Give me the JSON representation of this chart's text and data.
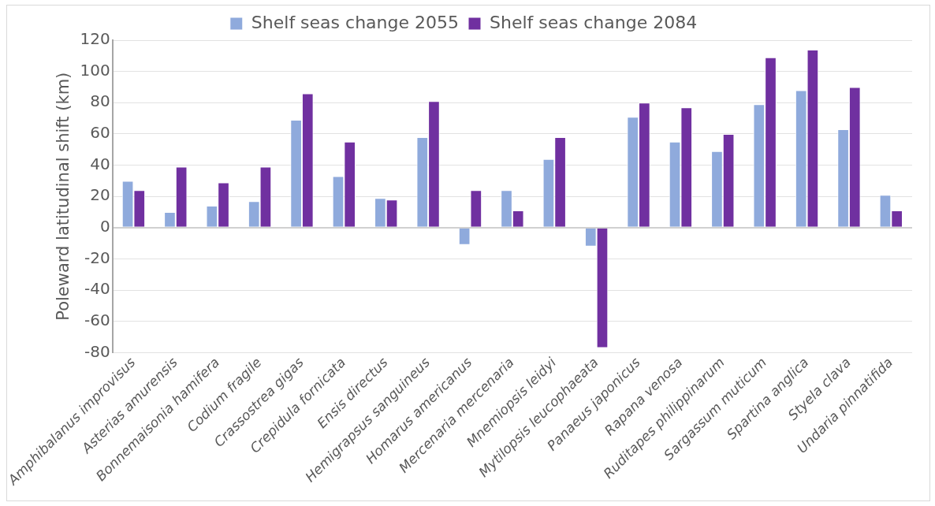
{
  "chart_data": {
    "type": "bar",
    "ylabel": "Poleward latitudinal shift (km)",
    "categories": [
      "Amphibalanus improvisus",
      "Asterias amurensis",
      "Bonnemaisonia hamifera",
      "Codium fragile",
      "Crassostrea gigas",
      "Crepidula fornicata",
      "Ensis directus",
      "Hemigrapsus sanguineus",
      "Homarus americanus",
      "Mercenaria mercenaria",
      "Mnemiopsis leidyi",
      "Mytilopsis leucophaeata",
      "Panaeus japonicus",
      "Rapana venosa",
      "Ruditapes philippinarum",
      "Sargassum muticum",
      "Spartina anglica",
      "Styela clava",
      "Undaria pinnatifida"
    ],
    "series": [
      {
        "name": "Shelf seas change 2055",
        "color": "#8faadc",
        "values": [
          30,
          10,
          14,
          17,
          69,
          33,
          19,
          58,
          -11,
          24,
          44,
          -12,
          71,
          55,
          49,
          79,
          88,
          63,
          21
        ]
      },
      {
        "name": "Shelf seas change 2084",
        "color": "#7030a0",
        "values": [
          24,
          39,
          29,
          39,
          86,
          55,
          18,
          81,
          24,
          11,
          58,
          -77,
          80,
          77,
          60,
          109,
          114,
          90,
          11
        ]
      }
    ],
    "ylim": [
      -80,
      120
    ],
    "yticks": [
      -80,
      -60,
      -40,
      -20,
      0,
      20,
      40,
      60,
      80,
      100,
      120
    ],
    "grid": "y",
    "legend": "top"
  }
}
